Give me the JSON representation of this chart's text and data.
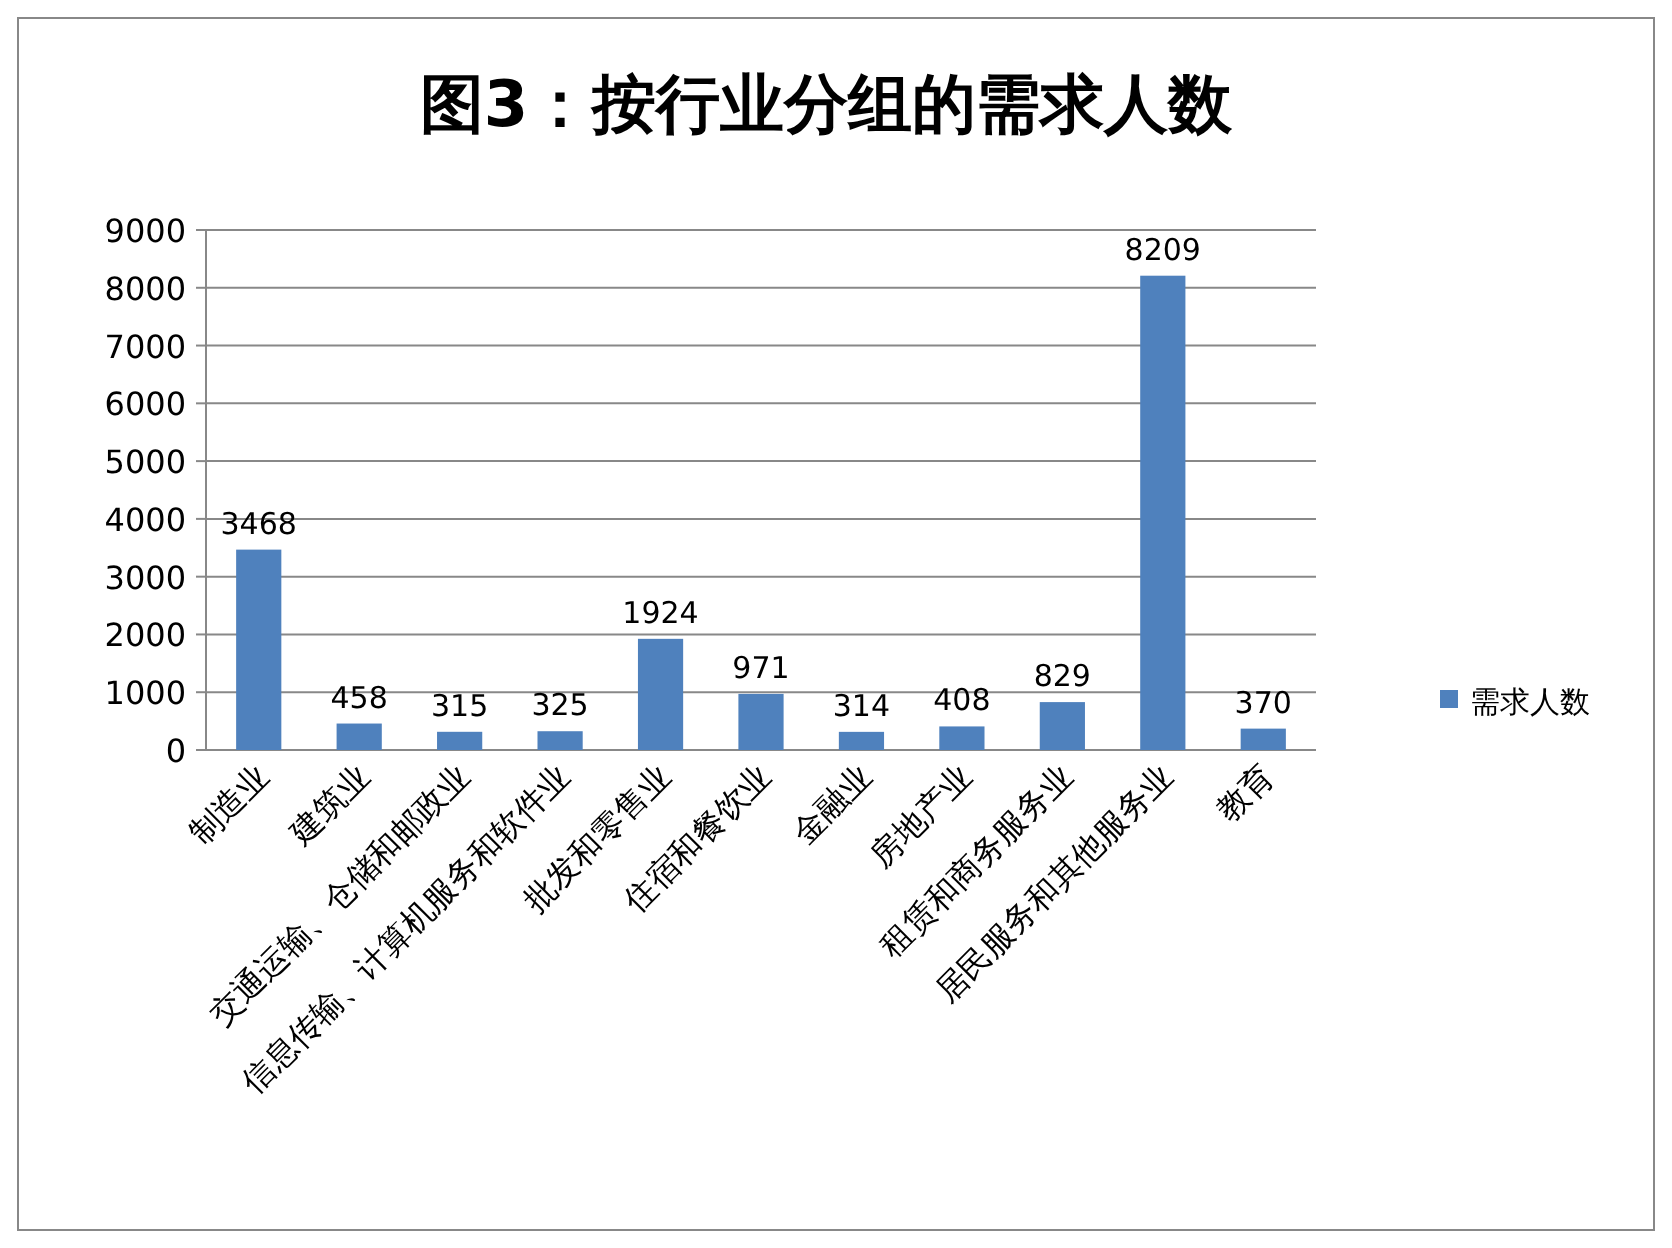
{
  "chart_data": {
    "type": "bar",
    "title": "图3：按行业分组的需求人数",
    "categories": [
      "制造业",
      "建筑业",
      "交通运输、仓储和邮政业",
      "信息传输、计算机服务和软件业",
      "批发和零售业",
      "住宿和餐饮业",
      "金融业",
      "房地产业",
      "租赁和商务服务业",
      "居民服务和其他服务业",
      "教育"
    ],
    "series": [
      {
        "name": "需求人数",
        "color": "#4f81bd",
        "values": [
          3468,
          458,
          315,
          325,
          1924,
          971,
          314,
          408,
          829,
          8209,
          370
        ]
      }
    ],
    "ylim": [
      0,
      9000
    ],
    "yticks": [
      0,
      1000,
      2000,
      3000,
      4000,
      5000,
      6000,
      7000,
      8000,
      9000
    ],
    "grid": "y",
    "legend": "right",
    "data_labels": true
  }
}
